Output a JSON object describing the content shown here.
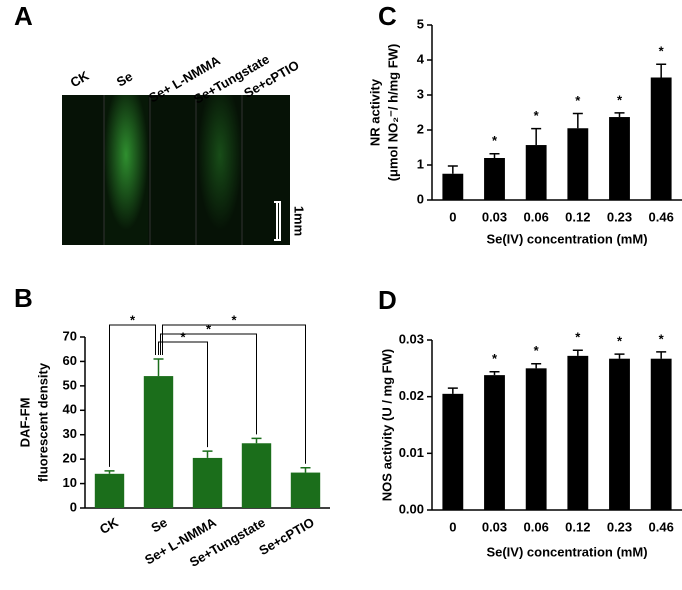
{
  "image_panel": {
    "panel_label": "A",
    "lanes": [
      "CK",
      "Se",
      "Se+ L-NMMA",
      "Se+Tungstate",
      "Se+cPTIO"
    ],
    "scale_label": "1mm"
  },
  "chart_data": [
    {
      "type": "bar",
      "panel_label": "B",
      "y_label": [
        "DAF-FM",
        "fluorescent density"
      ],
      "categories": [
        "CK",
        "Se",
        "Se+ L-NMMA",
        "Se+Tungstate",
        "Se+cPTIO"
      ],
      "values": [
        14,
        54,
        20.5,
        26.5,
        14.5
      ],
      "errors": [
        1.2,
        7,
        2.8,
        2,
        2
      ],
      "color": "#1b6e1b",
      "ylim": [
        0,
        70
      ],
      "yticks": [
        0,
        10,
        20,
        30,
        40,
        50,
        60,
        70
      ],
      "bracket_labels": [
        "*",
        "*",
        "*",
        "*"
      ]
    },
    {
      "type": "bar",
      "panel_label": "C",
      "y_label": [
        "NR activity",
        "(μmol NO₂⁻/ h/mg FW)"
      ],
      "x_label": "Se(IV) concentration (mM)",
      "categories": [
        "0",
        "0.03",
        "0.06",
        "0.12",
        "0.23",
        "0.46"
      ],
      "values": [
        0.75,
        1.2,
        1.57,
        2.05,
        2.37,
        3.5
      ],
      "errors": [
        0.22,
        0.12,
        0.47,
        0.42,
        0.12,
        0.38
      ],
      "significance": [
        null,
        "*",
        "*",
        "*",
        "*",
        "*"
      ],
      "color": "#000000",
      "ylim": [
        0,
        5
      ],
      "yticks": [
        0,
        1,
        2,
        3,
        4,
        5
      ]
    },
    {
      "type": "bar",
      "panel_label": "D",
      "y_label": [
        "NOS activity (U / mg FW)"
      ],
      "x_label": "Se(IV) concentration (mM)",
      "categories": [
        "0",
        "0.03",
        "0.06",
        "0.12",
        "0.23",
        "0.46"
      ],
      "values": [
        0.0205,
        0.0238,
        0.025,
        0.0272,
        0.0267,
        0.0267
      ],
      "errors": [
        0.001,
        0.0006,
        0.0008,
        0.001,
        0.0008,
        0.0012
      ],
      "significance": [
        null,
        "*",
        "*",
        "*",
        "*",
        "*"
      ],
      "color": "#000000",
      "ylim": [
        0,
        0.03
      ],
      "yticks": [
        {
          "value": 0,
          "label": "0.00"
        },
        {
          "value": 0.01,
          "label": "0.01"
        },
        {
          "value": 0.02,
          "label": "0.02"
        },
        {
          "value": 0.03,
          "label": "0.03"
        }
      ]
    }
  ]
}
